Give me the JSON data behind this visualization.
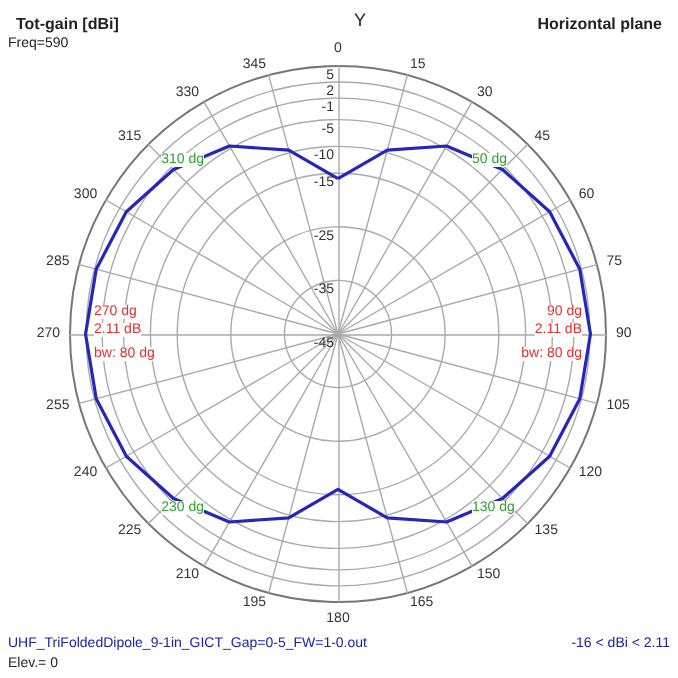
{
  "chart_data": {
    "type": "radar",
    "title": "Tot-gain [dBi]",
    "subtitle": "Horizontal plane",
    "categories": [
      "0",
      "15",
      "30",
      "45",
      "60",
      "75",
      "90",
      "105",
      "120",
      "135",
      "150",
      "165",
      "180",
      "195",
      "210",
      "225",
      "240",
      "255",
      "270",
      "285",
      "300",
      "315",
      "330",
      "345"
    ],
    "series": [
      {
        "color": "#2626b8",
        "values": [
          -16,
          -9.5,
          -4.5,
          -1.6,
          0.6,
          1.7,
          2.1,
          1.7,
          0.6,
          -1.6,
          -4.5,
          -9.5,
          -16,
          -9.5,
          -4.5,
          -1.6,
          0.6,
          1.7,
          2.1,
          1.7,
          0.6,
          -1.6,
          -4.5,
          -9.5
        ]
      }
    ],
    "ylim": [
      -45,
      5
    ],
    "yticks": [
      5,
      2,
      -1,
      -5,
      -10,
      -15,
      -25,
      -35,
      -45
    ],
    "grid": true,
    "marker": "none",
    "line_style": "solid",
    "annotations": [
      "Freq=590",
      "Y",
      "UHF_TriFoldedDipole_9-1in_GICT_Gap=0-5_FW=1-0.out",
      "-16 < dBi < 2.11",
      "Elev.= 0",
      "90 dg",
      "2.11 dB",
      "bw: 80 dg",
      "270 dg",
      "2.11 dB",
      "bw: 80 dg",
      "50 dg",
      "130 dg",
      "230 dg",
      "310 dg"
    ]
  }
}
